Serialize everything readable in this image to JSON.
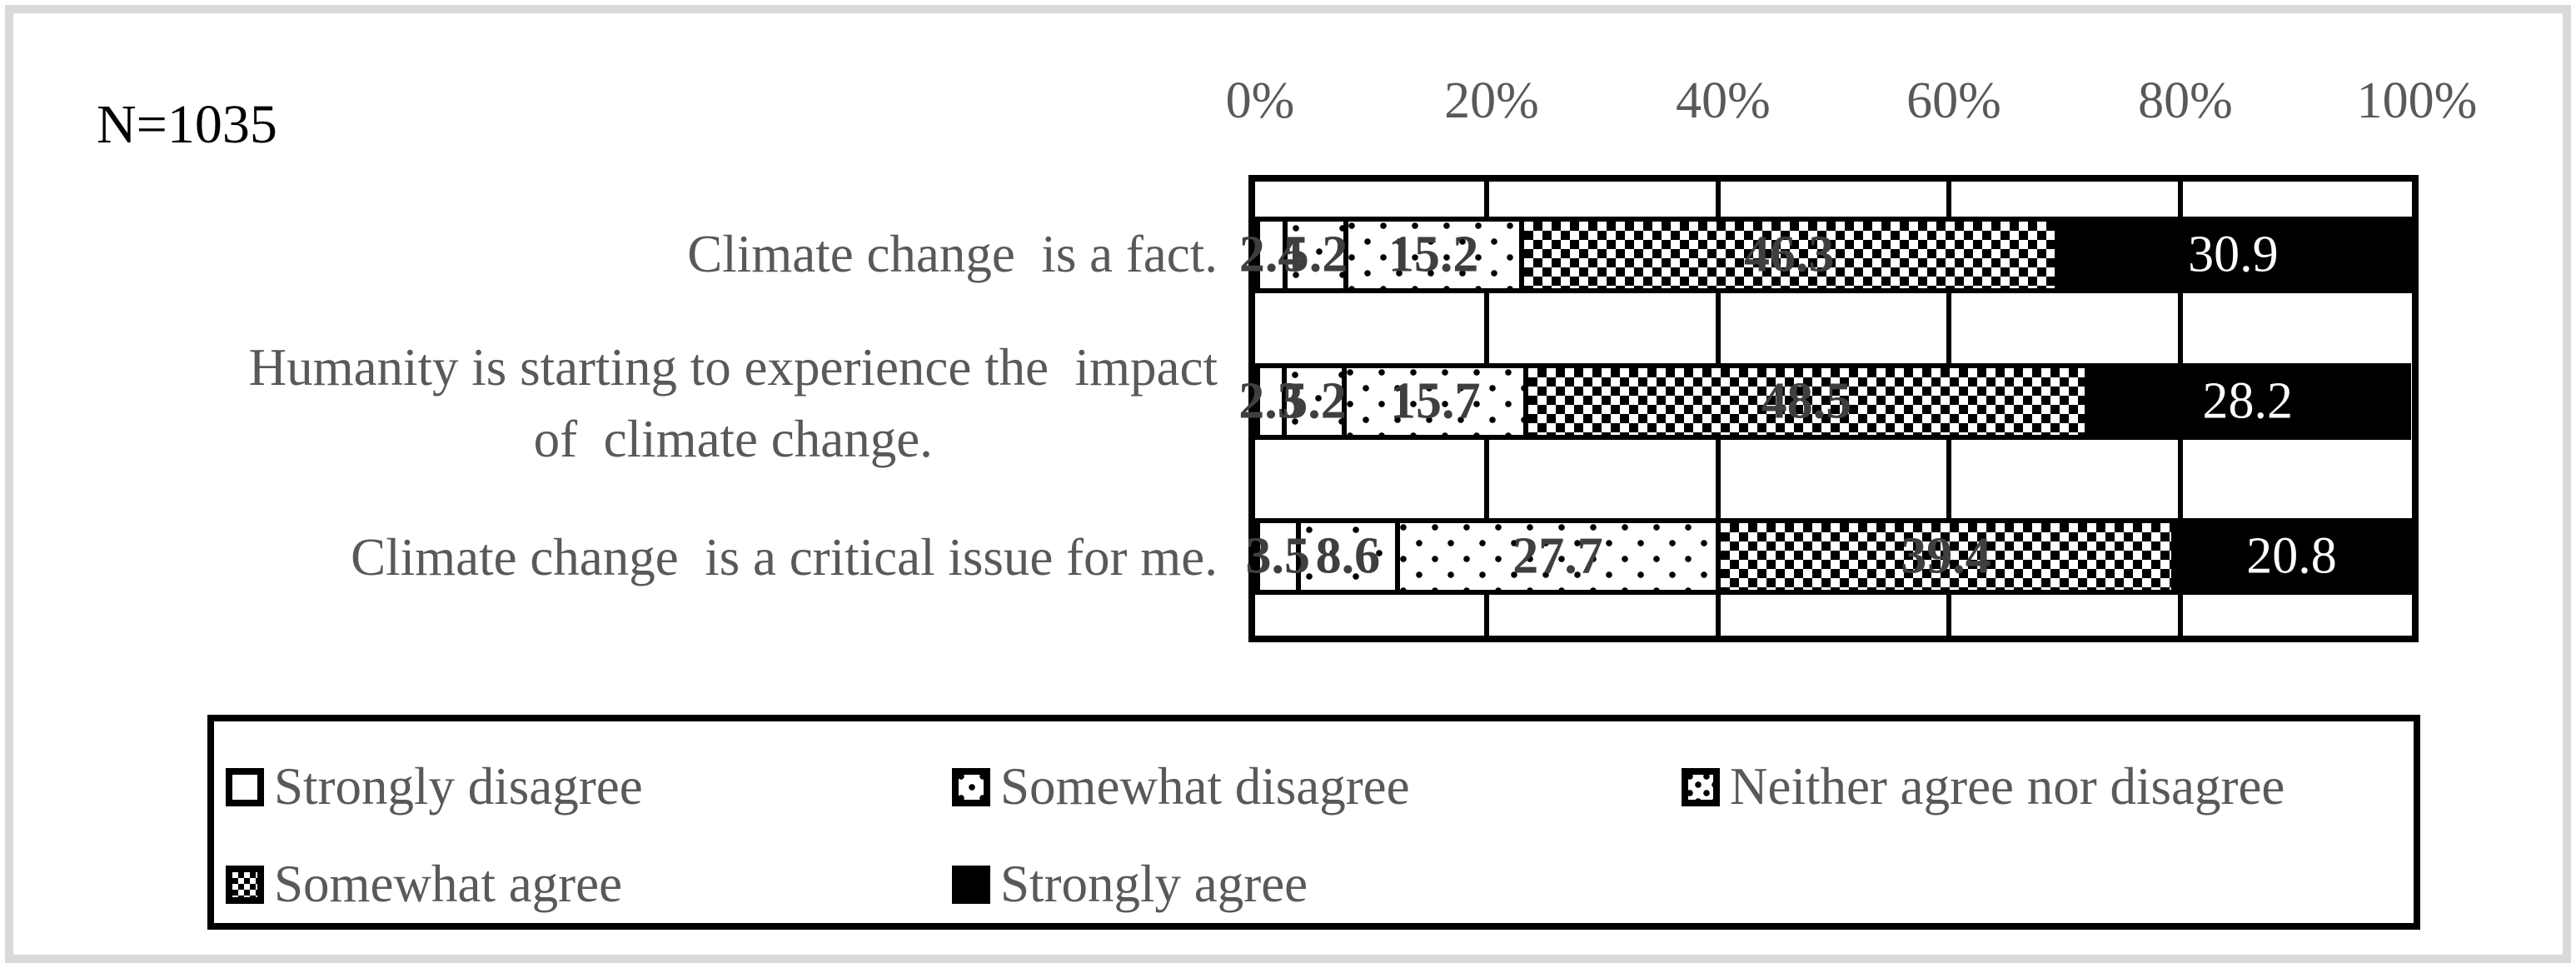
{
  "figure": {
    "n_label": "N=1035"
  },
  "colors": {
    "text_gray": "#595959",
    "data_label_gray": "#3f3f3f",
    "bar_black": "#000000",
    "frame_gray": "#d9d9d9",
    "background": "#ffffff"
  },
  "icons": {
    "legend_swatches": [
      "white-square-swatch",
      "sparse-dots-swatch",
      "dots-swatch",
      "checker-swatch",
      "black-square-swatch"
    ]
  },
  "chart_data": {
    "type": "bar",
    "stacked": true,
    "orientation": "horizontal",
    "n_label": "N=1035",
    "categories": [
      "Climate change  is a fact.",
      "Humanity is starting to experience the  impact\nof  climate change.",
      "Climate change  is a critical issue for me."
    ],
    "series": [
      {
        "name": "Strongly disagree",
        "pattern": "white",
        "values": [
          2.4,
          2.3,
          3.5
        ]
      },
      {
        "name": "Somewhat disagree",
        "pattern": "sparse-dots",
        "values": [
          5.2,
          5.2,
          8.6
        ]
      },
      {
        "name": "Neither agree nor disagree",
        "pattern": "dots",
        "values": [
          15.2,
          15.7,
          27.7
        ]
      },
      {
        "name": "Somewhat agree",
        "pattern": "checker",
        "values": [
          46.3,
          48.5,
          39.4
        ]
      },
      {
        "name": "Strongly agree",
        "pattern": "black",
        "values": [
          30.9,
          28.2,
          20.8
        ]
      }
    ],
    "x_tick_labels": [
      "0%",
      "20%",
      "40%",
      "60%",
      "80%",
      "100%"
    ],
    "xlim": [
      0,
      100
    ],
    "x_gridlines_pct": [
      20,
      40,
      60,
      80
    ],
    "legend_position": "bottom",
    "grid": true
  }
}
